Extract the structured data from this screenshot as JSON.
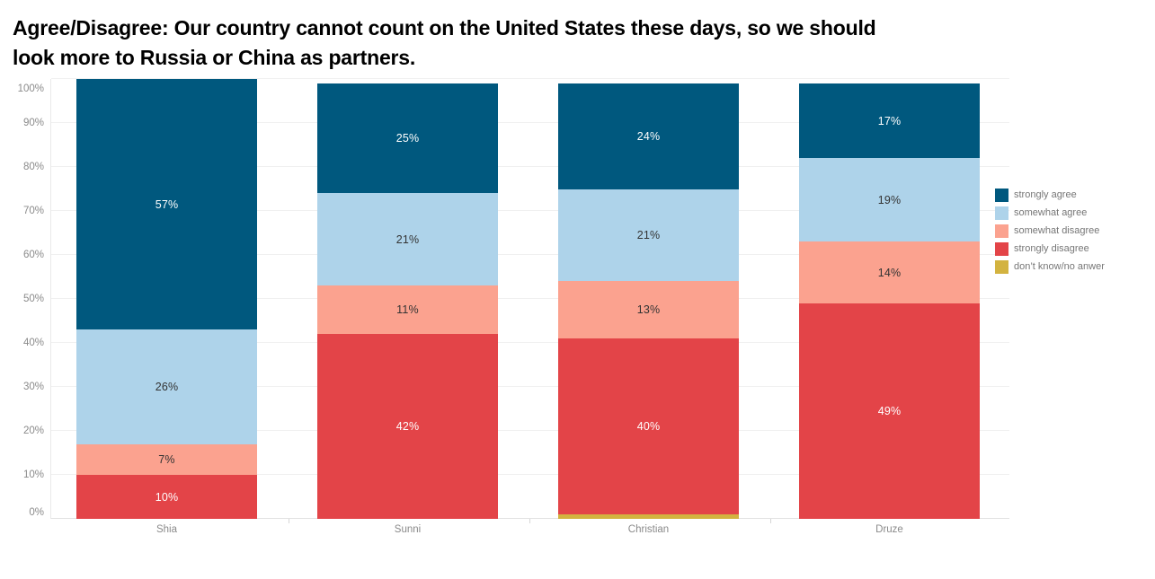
{
  "title": {
    "line1": "Agree/Disagree: Our country cannot count on the United States these days, so we should",
    "line2": "look more to Russia or China as partners."
  },
  "y_axis": {
    "tick_labels": [
      "0%",
      "10%",
      "20%",
      "30%",
      "40%",
      "50%",
      "60%",
      "70%",
      "80%",
      "90%",
      "100%"
    ]
  },
  "x_axis": {
    "categories": [
      "Shia",
      "Sunni",
      "Christian",
      "Druze"
    ]
  },
  "legend": {
    "items": [
      "strongly agree",
      "somewhat agree",
      "somewhat disagree",
      "strongly disagree",
      "don’t know/no anwer"
    ]
  },
  "chart_data": {
    "type": "bar",
    "subtype": "stacked-100-percent",
    "title": "Agree/Disagree: Our country cannot count on the United States these days, so we should look more to Russia or China as partners.",
    "categories": [
      "Shia",
      "Sunni",
      "Christian",
      "Druze"
    ],
    "series": [
      {
        "name": "strongly agree",
        "color": "#00587E",
        "label_text_color": "#FFFFFF",
        "values": [
          57,
          25,
          24,
          17
        ]
      },
      {
        "name": "somewhat agree",
        "color": "#AED3EA",
        "label_text_color": "#333333",
        "values": [
          26,
          21,
          21,
          19
        ]
      },
      {
        "name": "somewhat disagree",
        "color": "#FBA28F",
        "label_text_color": "#333333",
        "values": [
          7,
          11,
          13,
          14
        ]
      },
      {
        "name": "strongly disagree",
        "color": "#E34448",
        "label_text_color": "#FFFFFF",
        "values": [
          10,
          42,
          40,
          49
        ]
      },
      {
        "name": "don’t know/no anwer",
        "color": "#D3B340",
        "label_text_color": "#333333",
        "values": [
          0,
          0,
          1,
          0
        ]
      }
    ],
    "stack_order_top_to_bottom": [
      "strongly agree",
      "somewhat agree",
      "somewhat disagree",
      "strongly disagree",
      "don’t know/no anwer"
    ],
    "value_suffix": "%",
    "data_label_min_value_to_show": 5,
    "xlabel": "",
    "ylabel": "",
    "ylim": [
      0,
      100
    ],
    "y_tick_step": 10,
    "grid": true,
    "legend_position": "right"
  }
}
